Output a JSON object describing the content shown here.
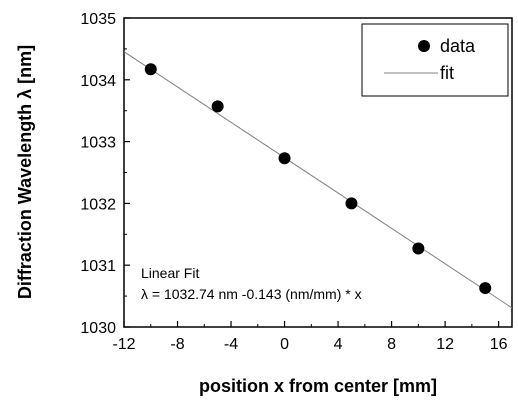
{
  "chart_data": {
    "type": "scatter",
    "xlabel": "position x from center [mm]",
    "ylabel": "Diffraction Wavelength λ [nm]",
    "xlim": [
      -12,
      17
    ],
    "ylim": [
      1030,
      1035
    ],
    "xticks": [
      -12,
      -8,
      -4,
      0,
      4,
      8,
      12,
      16
    ],
    "yticks": [
      1030,
      1031,
      1032,
      1033,
      1034,
      1035
    ],
    "grid": false,
    "legend_position": "top-right",
    "series": [
      {
        "name": "data",
        "kind": "points",
        "x": [
          -10,
          -5,
          0,
          5,
          10,
          15
        ],
        "y": [
          1034.17,
          1033.57,
          1032.73,
          1032.0,
          1031.27,
          1030.63
        ]
      },
      {
        "name": "fit",
        "kind": "line",
        "intercept": 1032.74,
        "slope": -0.143
      }
    ],
    "annotation": {
      "line1": "Linear Fit",
      "line2": "λ = 1032.74 nm -0.143 (nm/mm) * x"
    },
    "colors": {
      "points": "#000000",
      "fit_line": "#808080",
      "axes": "#000000"
    }
  }
}
